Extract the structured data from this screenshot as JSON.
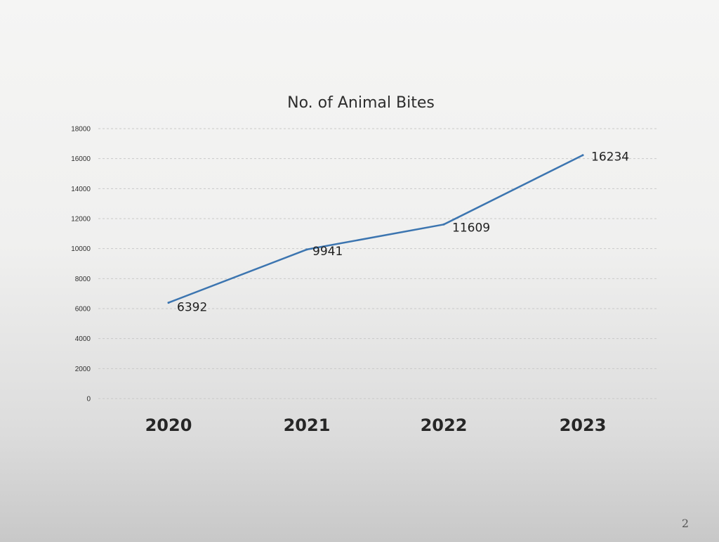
{
  "chart_data": {
    "type": "line",
    "title": "No. of Animal Bites",
    "categories": [
      "2020",
      "2021",
      "2022",
      "2023"
    ],
    "values": [
      6392,
      9941,
      11609,
      16234
    ],
    "data_labels": [
      "6392",
      "9941",
      "11609",
      "16234"
    ],
    "y_ticks": [
      "0",
      "2000",
      "4000",
      "6000",
      "8000",
      "10000",
      "12000",
      "14000",
      "16000",
      "18000"
    ],
    "xlabel": "",
    "ylabel": "",
    "ylim": [
      0,
      18000
    ],
    "grid": true,
    "legend": "none",
    "line_color": "#3c75b0"
  },
  "page_number": "2"
}
